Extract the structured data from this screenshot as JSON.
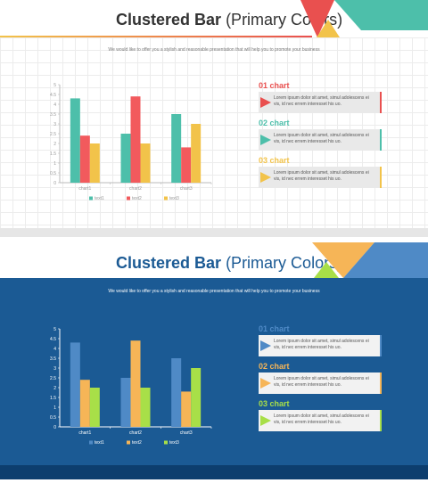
{
  "slides": [
    {
      "title_bold": "Clustered Bar",
      "title_regular": "(Primary Colors)",
      "subtitle": "We would like to offer you a stylish and reasonable presentation that will help you to promote your business",
      "palette": {
        "series": [
          "#4dbfaa",
          "#f25a5d",
          "#f2c34a"
        ],
        "axis": "#bbbbbb",
        "text": "#999999"
      },
      "items": [
        {
          "label": "01 chart",
          "text": "Lorem ipsum dolor sit amet, simul adolescens ei vis, id nec errem interesset his uo.",
          "color": "#e9504f"
        },
        {
          "label": "02 chart",
          "text": "Lorem ipsum dolor sit amet, simul adolescens ei vis, id nec errem interesset his uo.",
          "color": "#4dbfaa"
        },
        {
          "label": "03 chart",
          "text": "Lorem ipsum dolor sit amet, simul adolescens ei vis, id nec errem interesset his uo.",
          "color": "#f2c34a"
        }
      ],
      "chart_data": {
        "type": "bar",
        "categories": [
          "chart1",
          "chart2",
          "chart3"
        ],
        "series": [
          {
            "name": "text1",
            "values": [
              4.3,
              2.5,
              3.5
            ]
          },
          {
            "name": "text2",
            "values": [
              2.4,
              4.4,
              1.8
            ]
          },
          {
            "name": "text3",
            "values": [
              2.0,
              2.0,
              3.0
            ]
          }
        ],
        "yticks": [
          "0",
          "0.5",
          "1",
          "1.5",
          "2",
          "2.5",
          "3",
          "3.5",
          "4",
          "4.5",
          "5"
        ],
        "ylim": [
          0,
          5
        ],
        "legend": "bottom"
      }
    },
    {
      "title_bold": "Clustered Bar",
      "title_regular": "(Primary Colors)",
      "subtitle": "We would like to offer you a stylish and reasonable presentation that will help you to promote your business",
      "palette": {
        "series": [
          "#4f8ac6",
          "#f6b557",
          "#a8df48"
        ],
        "axis": "#ffffff",
        "text": "#ffffff"
      },
      "items": [
        {
          "label": "01 chart",
          "text": "Lorem ipsum dolor sit amet, simul adolescens ei vis, id nec errem interesset his uo.",
          "color": "#4f8ac6"
        },
        {
          "label": "02 chart",
          "text": "Lorem ipsum dolor sit amet, simul adolescens ei vis, id nec errem interesset his uo.",
          "color": "#f6b557"
        },
        {
          "label": "03 chart",
          "text": "Lorem ipsum dolor sit amet, simul adolescens ei vis, id nec errem interesset his uo.",
          "color": "#a8df48"
        }
      ],
      "chart_data": {
        "type": "bar",
        "categories": [
          "chart1",
          "chart2",
          "chart3"
        ],
        "series": [
          {
            "name": "text1",
            "values": [
              4.3,
              2.5,
              3.5
            ]
          },
          {
            "name": "text2",
            "values": [
              2.4,
              4.4,
              1.8
            ]
          },
          {
            "name": "text3",
            "values": [
              2.0,
              2.0,
              3.0
            ]
          }
        ],
        "yticks": [
          "0",
          "0.5",
          "1",
          "1.5",
          "2",
          "2.5",
          "3",
          "3.5",
          "4",
          "4.5",
          "5"
        ],
        "ylim": [
          0,
          5
        ],
        "legend": "bottom"
      }
    }
  ]
}
